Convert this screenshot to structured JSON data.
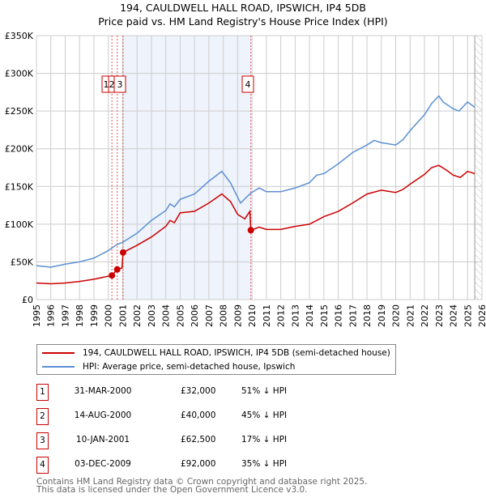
{
  "title_line1": "194, CAULDWELL HALL ROAD, IPSWICH, IP4 5DB",
  "title_line2": "Price paid vs. HM Land Registry's House Price Index (HPI)",
  "chart_data": {
    "type": "line",
    "title": "194, CAULDWELL HALL ROAD, IPSWICH, IP4 5DB — Price paid vs. HM Land Registry's House Price Index (HPI)",
    "xlim": [
      1995,
      2026
    ],
    "ylim": [
      0,
      350000
    ],
    "x_ticks": [
      1995,
      1996,
      1997,
      1998,
      1999,
      2000,
      2001,
      2002,
      2003,
      2004,
      2005,
      2006,
      2007,
      2008,
      2009,
      2010,
      2011,
      2012,
      2013,
      2014,
      2015,
      2016,
      2017,
      2018,
      2019,
      2020,
      2021,
      2022,
      2023,
      2024,
      2025,
      2026
    ],
    "y_ticks": [
      0,
      50000,
      100000,
      150000,
      200000,
      250000,
      300000,
      350000
    ],
    "y_tick_labels": [
      "£0",
      "£50K",
      "£100K",
      "£150K",
      "£200K",
      "£250K",
      "£300K",
      "£350K"
    ],
    "grid": true,
    "shaded_range": [
      2001.03,
      2009.92
    ],
    "hatched_from": 2025.5,
    "series": [
      {
        "name": "194, CAULDWELL HALL ROAD, IPSWICH, IP4 5DB (semi-detached house)",
        "color": "#cc0000",
        "x": [
          1995,
          1996,
          1997,
          1998,
          1999,
          2000.25,
          2000.62,
          2000.95,
          2001.03,
          2002,
          2003,
          2004,
          2004.3,
          2004.6,
          2005,
          2006,
          2007,
          2007.9,
          2008.5,
          2009,
          2009.5,
          2009.85,
          2009.92,
          2010.5,
          2011,
          2012,
          2013,
          2014,
          2015,
          2016,
          2017,
          2018,
          2019,
          2020,
          2020.5,
          2021,
          2022,
          2022.5,
          2023,
          2023.5,
          2024,
          2024.5,
          2025,
          2025.5
        ],
        "y": [
          22000,
          21000,
          22000,
          24000,
          27000,
          32000,
          40000,
          42000,
          62500,
          72000,
          83000,
          97000,
          105000,
          102000,
          115000,
          117000,
          128000,
          140000,
          130000,
          113000,
          107000,
          117000,
          92000,
          96000,
          93000,
          93000,
          97000,
          100000,
          110000,
          117000,
          128000,
          140000,
          145000,
          142000,
          146000,
          153000,
          166000,
          175000,
          178000,
          172000,
          165000,
          162000,
          170000,
          167000
        ]
      },
      {
        "name": "HPI: Average price, semi-detached house, Ipswich",
        "color": "#5b8fd4",
        "x": [
          1995,
          1996,
          1997,
          1998,
          1999,
          2000,
          2000.6,
          2001,
          2002,
          2003,
          2004,
          2004.3,
          2004.6,
          2005,
          2006,
          2007,
          2007.9,
          2008.5,
          2009.2,
          2009.9,
          2010.5,
          2011,
          2012,
          2013,
          2014,
          2014.5,
          2015,
          2016,
          2017,
          2018,
          2018.5,
          2019,
          2020,
          2020.5,
          2021,
          2022,
          2022.5,
          2023,
          2023.3,
          2024,
          2024.4,
          2025,
          2025.5
        ],
        "y": [
          45000,
          43000,
          47000,
          50000,
          55000,
          65000,
          73000,
          76000,
          88000,
          105000,
          118000,
          127000,
          123000,
          133000,
          140000,
          157000,
          170000,
          155000,
          128000,
          141000,
          148000,
          143000,
          143000,
          148000,
          155000,
          165000,
          167000,
          180000,
          195000,
          205000,
          211000,
          208000,
          205000,
          212000,
          224000,
          245000,
          260000,
          270000,
          262000,
          253000,
          250000,
          262000,
          255000
        ]
      }
    ],
    "sales": [
      {
        "label": "1",
        "x": 2000.25,
        "y": 32000
      },
      {
        "label": "2",
        "x": 2000.62,
        "y": 40000
      },
      {
        "label": "3",
        "x": 2001.03,
        "y": 62500
      },
      {
        "label": "4",
        "x": 2009.92,
        "y": 92000
      }
    ]
  },
  "legend": {
    "property": "194, CAULDWELL HALL ROAD, IPSWICH, IP4 5DB (semi-detached house)",
    "hpi": "HPI: Average price, semi-detached house, Ipswich"
  },
  "transactions": [
    {
      "num": "1",
      "date": "31-MAR-2000",
      "price": "£32,000",
      "pct": "51% ↓ HPI"
    },
    {
      "num": "2",
      "date": "14-AUG-2000",
      "price": "£40,000",
      "pct": "45% ↓ HPI"
    },
    {
      "num": "3",
      "date": "10-JAN-2001",
      "price": "£62,500",
      "pct": "17% ↓ HPI"
    },
    {
      "num": "4",
      "date": "03-DEC-2009",
      "price": "£92,000",
      "pct": "35% ↓ HPI"
    }
  ],
  "footer_line1": "Contains HM Land Registry data © Crown copyright and database right 2025.",
  "footer_line2": "This data is licensed under the Open Government Licence v3.0."
}
